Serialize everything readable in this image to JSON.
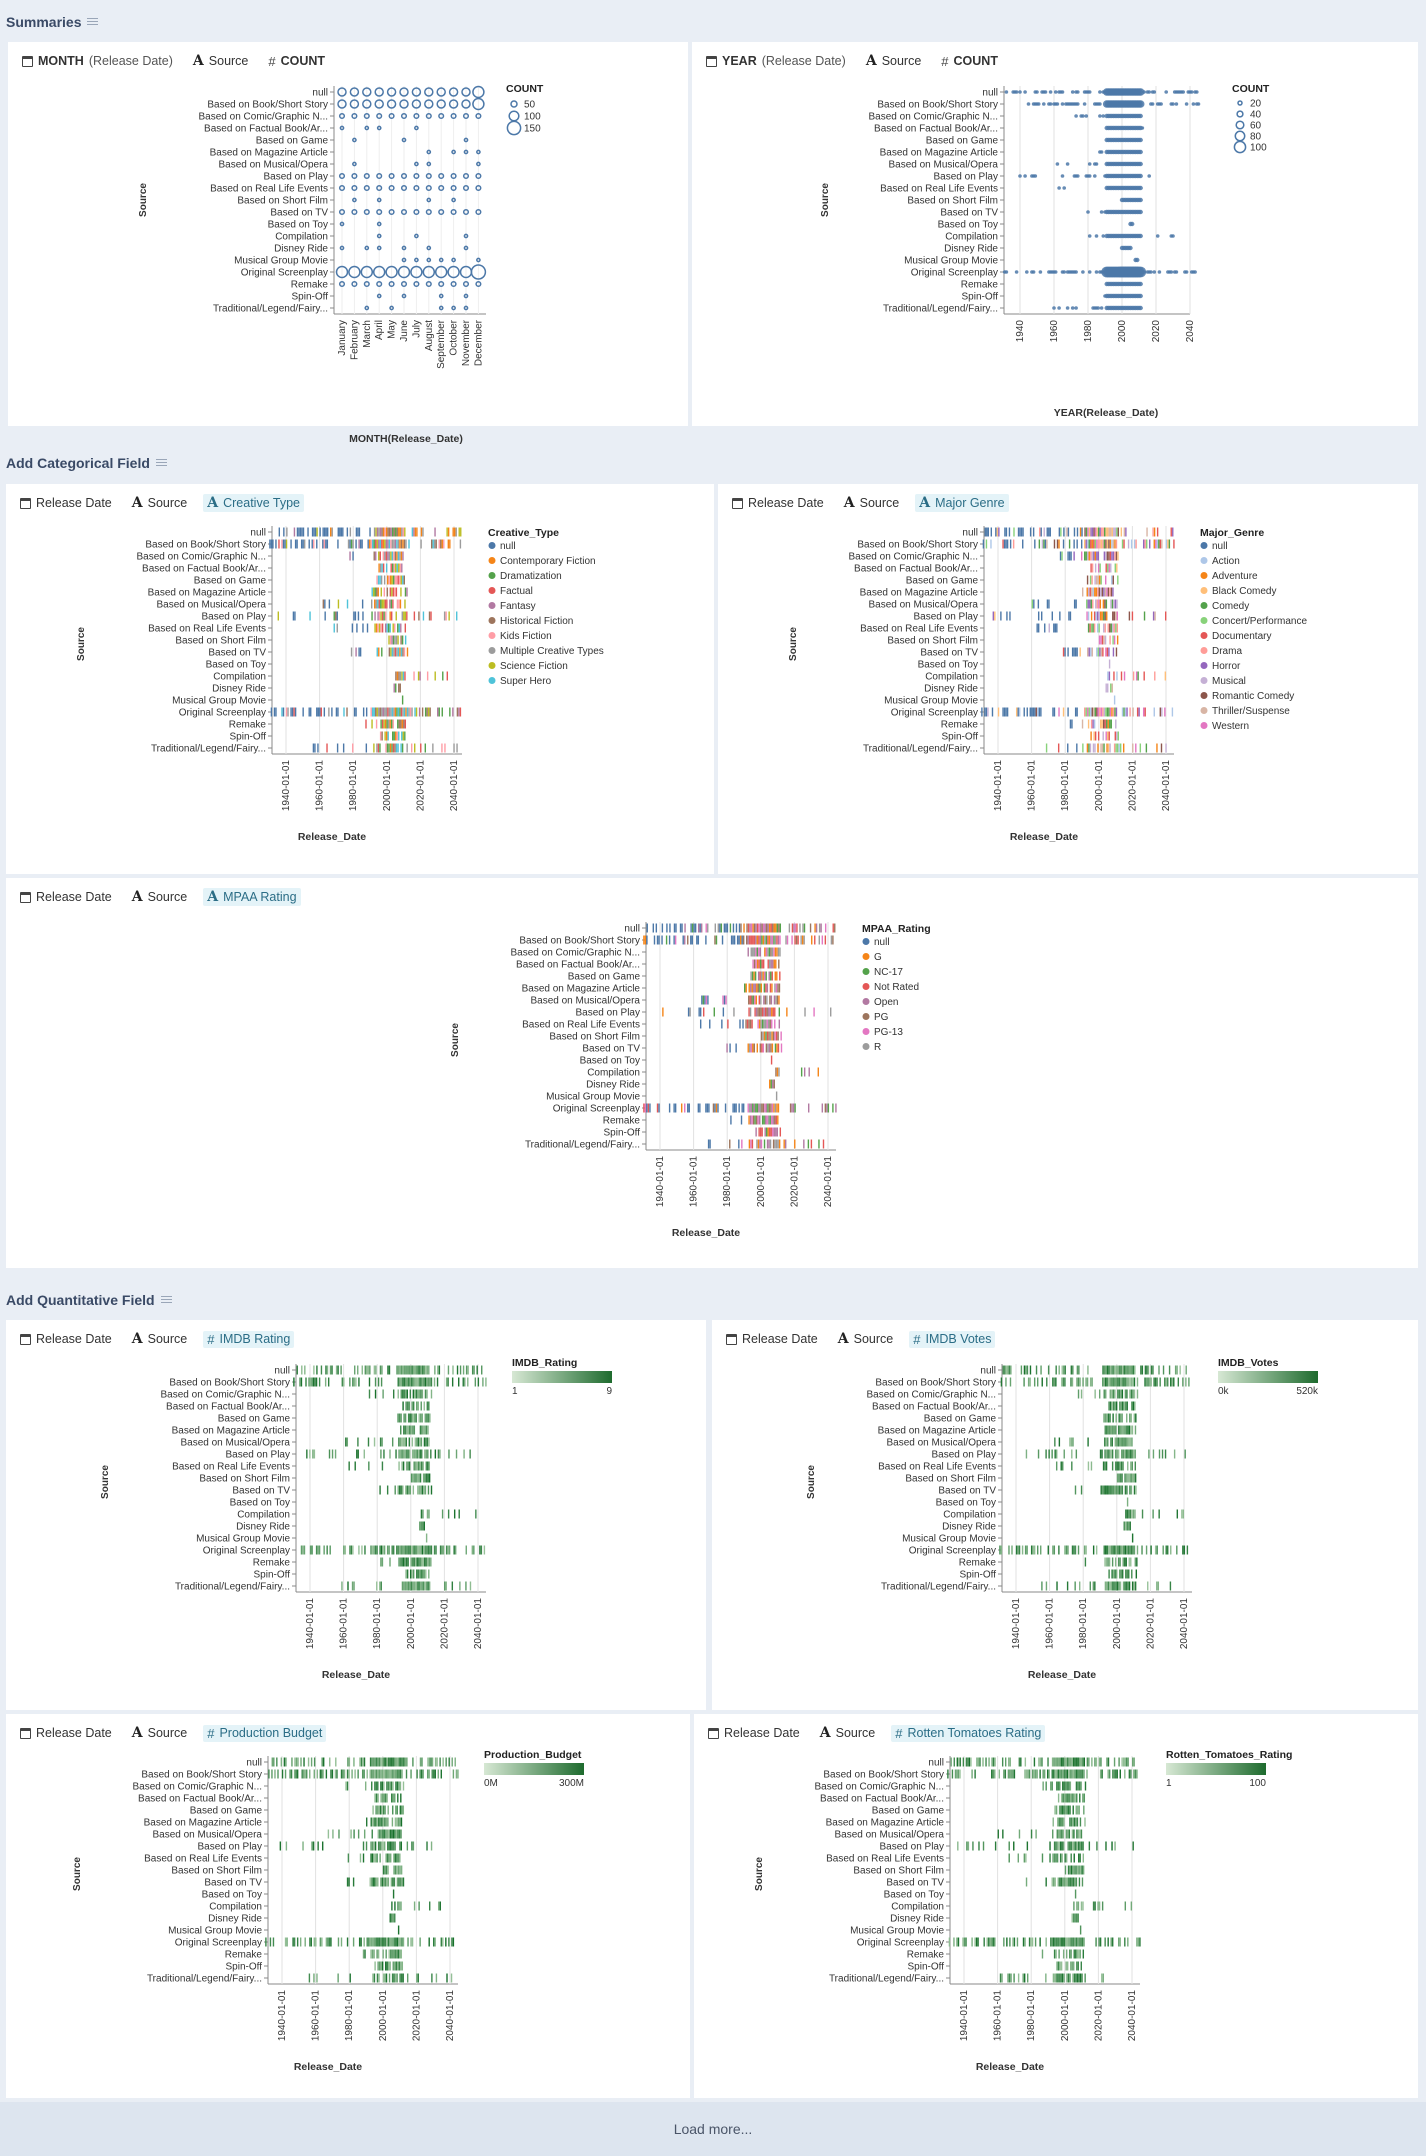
{
  "sections": {
    "summaries": "Summaries",
    "categorical": "Add Categorical Field",
    "quantitative": "Add Quantitative Field"
  },
  "y_label": "Source",
  "sources": [
    "null",
    "Based on Book/Short Story",
    "Based on Comic/Graphic N...",
    "Based on Factual Book/Ar...",
    "Based on Game",
    "Based on Magazine Article",
    "Based on Musical/Opera",
    "Based on Play",
    "Based on Real Life Events",
    "Based on Short Film",
    "Based on TV",
    "Based on Toy",
    "Compilation",
    "Disney Ride",
    "Musical Group Movie",
    "Original Screenplay",
    "Remake",
    "Spin-Off",
    "Traditional/Legend/Fairy..."
  ],
  "month_chart": {
    "header": {
      "field1": "MONTH",
      "field1_suffix": "(Release Date)",
      "field2": "Source",
      "field3": "COUNT"
    },
    "x_title": "MONTH(Release_Date)",
    "months": [
      "January",
      "February",
      "March",
      "April",
      "May",
      "June",
      "July",
      "August",
      "September",
      "October",
      "November",
      "December"
    ],
    "legend_title": "COUNT",
    "legend_values": [
      "50",
      "100",
      "150"
    ]
  },
  "year_chart": {
    "header": {
      "field1": "YEAR",
      "field1_suffix": "(Release Date)",
      "field2": "Source",
      "field3": "COUNT"
    },
    "x_title": "YEAR(Release_Date)",
    "x_ticks": [
      "1940",
      "1960",
      "1980",
      "2000",
      "2020",
      "2040"
    ],
    "legend_title": "COUNT",
    "legend_values": [
      "20",
      "40",
      "60",
      "80",
      "100"
    ]
  },
  "date_ticks": [
    "1940-01-01",
    "1960-01-01",
    "1980-01-01",
    "2000-01-01",
    "2020-01-01",
    "2040-01-01"
  ],
  "date_x_title": "Release_Date",
  "cat_charts": [
    {
      "header": {
        "field1": "Release Date",
        "field2": "Source",
        "field3": "Creative Type"
      },
      "legend_title": "Creative_Type",
      "legend": [
        {
          "label": "null",
          "color": "#4c78a8"
        },
        {
          "label": "Contemporary Fiction",
          "color": "#f58518"
        },
        {
          "label": "Dramatization",
          "color": "#54a24b"
        },
        {
          "label": "Factual",
          "color": "#e45756"
        },
        {
          "label": "Fantasy",
          "color": "#b279a2"
        },
        {
          "label": "Historical Fiction",
          "color": "#9d755d"
        },
        {
          "label": "Kids Fiction",
          "color": "#ff9da6"
        },
        {
          "label": "Multiple Creative Types",
          "color": "#9c9c9c"
        },
        {
          "label": "Science Fiction",
          "color": "#bcbd22"
        },
        {
          "label": "Super Hero",
          "color": "#4fc3d9"
        }
      ]
    },
    {
      "header": {
        "field1": "Release Date",
        "field2": "Source",
        "field3": "Major Genre"
      },
      "legend_title": "Major_Genre",
      "legend": [
        {
          "label": "null",
          "color": "#4c78a8"
        },
        {
          "label": "Action",
          "color": "#aec7e8"
        },
        {
          "label": "Adventure",
          "color": "#f58518"
        },
        {
          "label": "Black Comedy",
          "color": "#ffbf79"
        },
        {
          "label": "Comedy",
          "color": "#54a24b"
        },
        {
          "label": "Concert/Performance",
          "color": "#88d27a"
        },
        {
          "label": "Documentary",
          "color": "#e45756"
        },
        {
          "label": "Drama",
          "color": "#ff9d98"
        },
        {
          "label": "Horror",
          "color": "#9467bd"
        },
        {
          "label": "Musical",
          "color": "#c5b0d5"
        },
        {
          "label": "Romantic Comedy",
          "color": "#8c564b"
        },
        {
          "label": "Thriller/Suspense",
          "color": "#d8b5a5"
        },
        {
          "label": "Western",
          "color": "#e377c2"
        }
      ]
    },
    {
      "header": {
        "field1": "Release Date",
        "field2": "Source",
        "field3": "MPAA Rating"
      },
      "legend_title": "MPAA_Rating",
      "legend": [
        {
          "label": "null",
          "color": "#4c78a8"
        },
        {
          "label": "G",
          "color": "#f58518"
        },
        {
          "label": "NC-17",
          "color": "#54a24b"
        },
        {
          "label": "Not Rated",
          "color": "#e45756"
        },
        {
          "label": "Open",
          "color": "#b279a2"
        },
        {
          "label": "PG",
          "color": "#9d755d"
        },
        {
          "label": "PG-13",
          "color": "#e377c2"
        },
        {
          "label": "R",
          "color": "#9c9c9c"
        }
      ]
    }
  ],
  "quant_charts": [
    {
      "header": {
        "field1": "Release Date",
        "field2": "Source",
        "field3": "IMDB Rating"
      },
      "legend_title": "IMDB_Rating",
      "min_label": "1",
      "max_label": "9"
    },
    {
      "header": {
        "field1": "Release Date",
        "field2": "Source",
        "field3": "IMDB Votes"
      },
      "legend_title": "IMDB_Votes",
      "min_label": "0k",
      "max_label": "520k"
    },
    {
      "header": {
        "field1": "Release Date",
        "field2": "Source",
        "field3": "Production Budget"
      },
      "legend_title": "Production_Budget",
      "min_label": "0M",
      "max_label": "300M"
    },
    {
      "header": {
        "field1": "Release Date",
        "field2": "Source",
        "field3": "Rotten Tomatoes Rating"
      },
      "legend_title": "Rotten_Tomatoes_Rating",
      "min_label": "1",
      "max_label": "100"
    }
  ],
  "load_more": "Load more..."
}
